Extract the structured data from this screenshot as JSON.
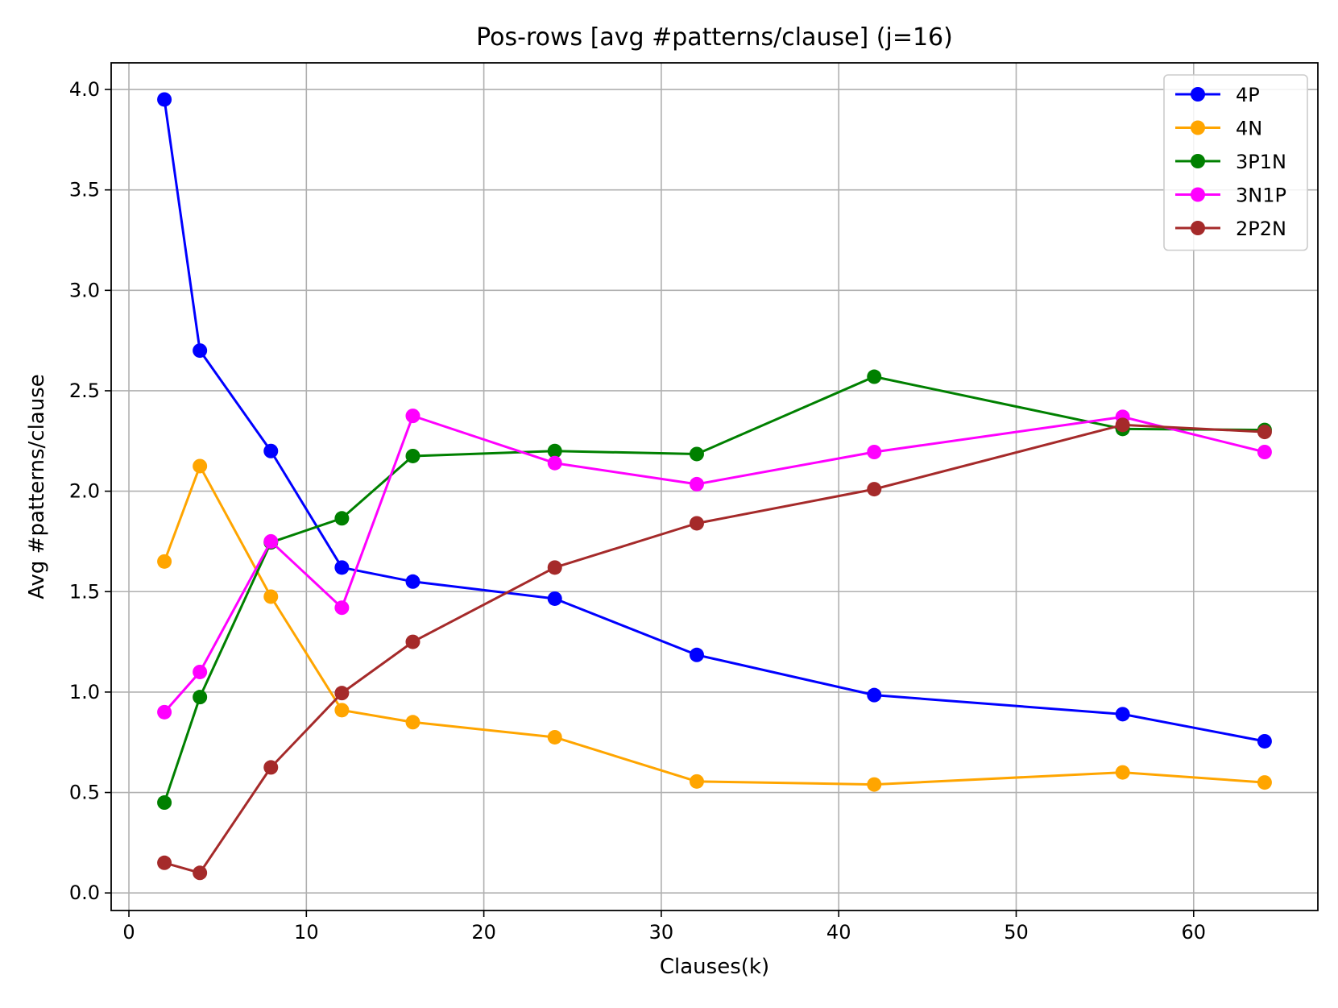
{
  "chart_data": {
    "type": "line",
    "title": "Pos-rows [avg #patterns/clause] (j=16)",
    "xlabel": "Clauses(k)",
    "ylabel": "Avg #patterns/clause",
    "xlim": [
      -1,
      67
    ],
    "ylim": [
      -0.0875,
      4.1325
    ],
    "xticks": [
      0,
      10,
      20,
      30,
      40,
      50,
      60
    ],
    "yticks": [
      0.0,
      0.5,
      1.0,
      1.5,
      2.0,
      2.5,
      3.0,
      3.5,
      4.0
    ],
    "xtick_labels": [
      "0",
      "10",
      "20",
      "30",
      "40",
      "50",
      "60"
    ],
    "ytick_labels": [
      "0.0",
      "0.5",
      "1.0",
      "1.5",
      "2.0",
      "2.5",
      "3.0",
      "3.5",
      "4.0"
    ],
    "grid": true,
    "legend_position": "top-right",
    "x": [
      2,
      4,
      8,
      12,
      16,
      24,
      32,
      42,
      56,
      64
    ],
    "series": [
      {
        "name": "4P",
        "color": "#0000ff",
        "values": [
          3.95,
          2.7,
          2.2,
          1.62,
          1.55,
          1.465,
          1.185,
          0.985,
          0.89,
          0.755
        ]
      },
      {
        "name": "4N",
        "color": "#ffa500",
        "values": [
          1.65,
          2.125,
          1.475,
          0.91,
          0.85,
          0.775,
          0.555,
          0.54,
          0.6,
          0.55
        ]
      },
      {
        "name": "3P1N",
        "color": "#008000",
        "values": [
          0.45,
          0.975,
          1.745,
          1.865,
          2.175,
          2.2,
          2.185,
          2.57,
          2.31,
          2.305
        ]
      },
      {
        "name": "3N1P",
        "color": "#ff00ff",
        "values": [
          0.9,
          1.1,
          1.75,
          1.42,
          2.375,
          2.14,
          2.035,
          2.195,
          2.37,
          2.195
        ]
      },
      {
        "name": "2P2N",
        "color": "#a52a2a",
        "values": [
          0.15,
          0.1,
          0.625,
          0.995,
          1.25,
          1.62,
          1.84,
          2.01,
          2.33,
          2.295
        ]
      }
    ]
  }
}
